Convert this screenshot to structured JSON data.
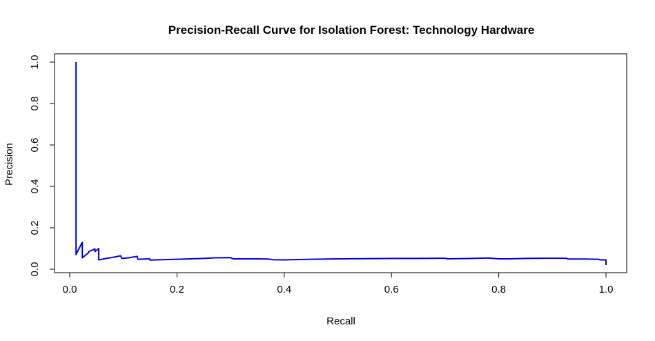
{
  "chart_data": {
    "type": "line",
    "title": "Precision-Recall Curve for Isolation Forest: Technology Hardware",
    "xlabel": "Recall",
    "ylabel": "Precision",
    "xlim": [
      0,
      1
    ],
    "ylim": [
      0,
      1
    ],
    "x_ticks": [
      "0.0",
      "0.2",
      "0.4",
      "0.6",
      "0.8",
      "1.0"
    ],
    "y_ticks": [
      "0.0",
      "0.2",
      "0.4",
      "0.6",
      "0.8",
      "1.0"
    ],
    "grid": false,
    "legend": "none",
    "series": [
      {
        "color": "#0000dd",
        "x": [
          0.0118,
          0.0118,
          0.0118,
          0.0235,
          0.0235,
          0.0353,
          0.0353,
          0.0471,
          0.0471,
          0.0541,
          0.0541,
          0.07,
          0.082,
          0.095,
          0.097,
          0.11,
          0.126,
          0.127,
          0.149,
          0.15,
          0.2,
          0.25,
          0.27,
          0.3,
          0.305,
          0.35,
          0.37,
          0.38,
          0.4,
          0.45,
          0.5,
          0.55,
          0.6,
          0.65,
          0.7,
          0.705,
          0.75,
          0.78,
          0.8,
          0.82,
          0.85,
          0.88,
          0.925,
          0.93,
          0.96,
          0.985,
          0.99,
          1.0,
          1.0
        ],
        "y": [
          1.0,
          0.07,
          0.072,
          0.13,
          0.055,
          0.08,
          0.085,
          0.098,
          0.085,
          0.1,
          0.045,
          0.053,
          0.058,
          0.065,
          0.052,
          0.055,
          0.062,
          0.048,
          0.05,
          0.044,
          0.048,
          0.052,
          0.055,
          0.056,
          0.05,
          0.05,
          0.049,
          0.046,
          0.045,
          0.048,
          0.05,
          0.051,
          0.052,
          0.052,
          0.053,
          0.05,
          0.052,
          0.054,
          0.05,
          0.05,
          0.052,
          0.053,
          0.053,
          0.049,
          0.049,
          0.048,
          0.045,
          0.045,
          0.02
        ]
      }
    ]
  }
}
